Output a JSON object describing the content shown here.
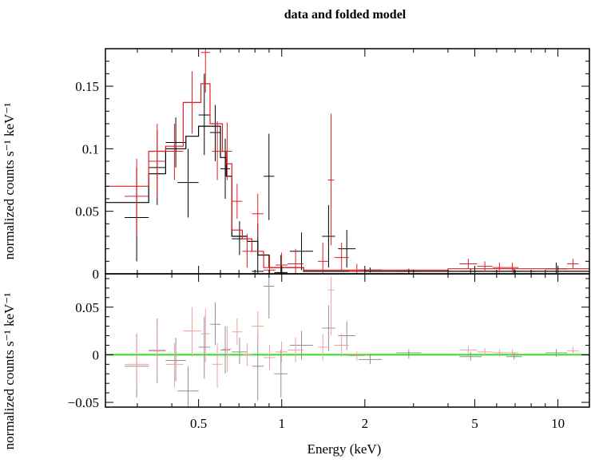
{
  "chart_data": [
    {
      "type": "scatter",
      "title": "data and folded model",
      "ylabel": "normalized counts s⁻¹ keV⁻¹",
      "xlabel": "",
      "xscale": "log",
      "xlim": [
        0.23,
        13
      ],
      "ylim": [
        0,
        0.18
      ],
      "xticks": [
        0.5,
        1,
        2,
        5,
        10
      ],
      "yticks": [
        0,
        0.05,
        0.1,
        0.15
      ],
      "ytick_labels": [
        "0",
        "0.05",
        "0.1",
        "0.15"
      ],
      "grid": false,
      "series": [
        {
          "color": "#000000",
          "data": [
            {
              "xlo": 0.27,
              "xhi": 0.33,
              "y": 0.045,
              "ylo": 0.01,
              "yhi": 0.085
            },
            {
              "xlo": 0.33,
              "xhi": 0.38,
              "y": 0.085,
              "ylo": 0.055,
              "yhi": 0.115
            },
            {
              "xlo": 0.38,
              "xhi": 0.45,
              "y": 0.105,
              "ylo": 0.085,
              "yhi": 0.125
            },
            {
              "xlo": 0.42,
              "xhi": 0.5,
              "y": 0.073,
              "ylo": 0.045,
              "yhi": 0.1
            },
            {
              "xlo": 0.5,
              "xhi": 0.55,
              "y": 0.127,
              "ylo": 0.095,
              "yhi": 0.16
            },
            {
              "xlo": 0.55,
              "xhi": 0.6,
              "y": 0.113,
              "ylo": 0.09,
              "yhi": 0.135
            },
            {
              "xlo": 0.6,
              "xhi": 0.65,
              "y": 0.084,
              "ylo": 0.06,
              "yhi": 0.108
            },
            {
              "xlo": 0.66,
              "xhi": 0.75,
              "y": 0.028,
              "ylo": 0.015,
              "yhi": 0.042
            },
            {
              "xlo": 0.78,
              "xhi": 0.86,
              "y": 0.002,
              "ylo": -0.005,
              "yhi": 0.04
            },
            {
              "xlo": 0.86,
              "xhi": 0.94,
              "y": 0.078,
              "ylo": 0.043,
              "yhi": 0.112
            },
            {
              "xlo": 0.94,
              "xhi": 1.05,
              "y": 0.001,
              "ylo": -0.006,
              "yhi": 0.015
            },
            {
              "xlo": 1.07,
              "xhi": 1.3,
              "y": 0.018,
              "ylo": 0.003,
              "yhi": 0.033
            },
            {
              "xlo": 1.4,
              "xhi": 1.56,
              "y": 0.03,
              "ylo": 0.005,
              "yhi": 0.055
            },
            {
              "xlo": 1.6,
              "xhi": 1.85,
              "y": 0.02,
              "ylo": 0.005,
              "yhi": 0.035
            },
            {
              "xlo": 1.9,
              "xhi": 2.3,
              "y": 0.003,
              "ylo": 0.001,
              "yhi": 0.005
            },
            {
              "xlo": 2.6,
              "xhi": 3.2,
              "y": 0.002,
              "ylo": 0.0,
              "yhi": 0.004
            },
            {
              "xlo": 4.4,
              "xhi": 5.3,
              "y": 0.002,
              "ylo": 0.0,
              "yhi": 0.004
            },
            {
              "xlo": 6.5,
              "xhi": 7.4,
              "y": 0.002,
              "ylo": 0.0,
              "yhi": 0.004
            },
            {
              "xlo": 9.0,
              "xhi": 10.8,
              "y": 0.004,
              "ylo": 0.0,
              "yhi": 0.009
            }
          ],
          "model_steps": [
            [
              0.23,
              0.057
            ],
            [
              0.33,
              0.08
            ],
            [
              0.38,
              0.1
            ],
            [
              0.45,
              0.11
            ],
            [
              0.5,
              0.118
            ],
            [
              0.6,
              0.093
            ],
            [
              0.63,
              0.078
            ],
            [
              0.66,
              0.03
            ],
            [
              0.75,
              0.026
            ],
            [
              0.82,
              0.015
            ],
            [
              0.9,
              0.005
            ],
            [
              1.2,
              0.002
            ],
            [
              13.0,
              0.002
            ]
          ]
        },
        {
          "color": "#e02020",
          "data": [
            {
              "xlo": 0.27,
              "xhi": 0.33,
              "y": 0.062,
              "ylo": 0.03,
              "yhi": 0.092
            },
            {
              "xlo": 0.33,
              "xhi": 0.38,
              "y": 0.09,
              "ylo": 0.06,
              "yhi": 0.12
            },
            {
              "xlo": 0.38,
              "xhi": 0.44,
              "y": 0.098,
              "ylo": 0.075,
              "yhi": 0.12
            },
            {
              "xlo": 0.44,
              "xhi": 0.51,
              "y": 0.137,
              "ylo": 0.112,
              "yhi": 0.162
            },
            {
              "xlo": 0.51,
              "xhi": 0.55,
              "y": 0.177,
              "ylo": 0.145,
              "yhi": 0.182
            },
            {
              "xlo": 0.56,
              "xhi": 0.61,
              "y": 0.098,
              "ylo": 0.075,
              "yhi": 0.122
            },
            {
              "xlo": 0.61,
              "xhi": 0.66,
              "y": 0.098,
              "ylo": 0.075,
              "yhi": 0.121
            },
            {
              "xlo": 0.66,
              "xhi": 0.72,
              "y": 0.058,
              "ylo": 0.044,
              "yhi": 0.072
            },
            {
              "xlo": 0.72,
              "xhi": 0.78,
              "y": 0.018,
              "ylo": 0.005,
              "yhi": 0.032
            },
            {
              "xlo": 0.78,
              "xhi": 0.86,
              "y": 0.048,
              "ylo": 0.03,
              "yhi": 0.064
            },
            {
              "xlo": 0.86,
              "xhi": 0.95,
              "y": 0.003,
              "ylo": 0.0,
              "yhi": 0.015
            },
            {
              "xlo": 0.95,
              "xhi": 1.05,
              "y": 0.007,
              "ylo": 0.0,
              "yhi": 0.017
            },
            {
              "xlo": 1.05,
              "xhi": 1.2,
              "y": 0.008,
              "ylo": 0.0,
              "yhi": 0.02
            },
            {
              "xlo": 1.35,
              "xhi": 1.47,
              "y": 0.01,
              "ylo": 0.0,
              "yhi": 0.025
            },
            {
              "xlo": 1.47,
              "xhi": 1.55,
              "y": 0.075,
              "ylo": 0.023,
              "yhi": 0.128
            },
            {
              "xlo": 1.55,
              "xhi": 1.75,
              "y": 0.013,
              "ylo": 0.003,
              "yhi": 0.025
            },
            {
              "xlo": 1.75,
              "xhi": 2.0,
              "y": 0.002,
              "ylo": 0.0,
              "yhi": 0.008
            },
            {
              "xlo": 4.4,
              "xhi": 5.1,
              "y": 0.008,
              "ylo": 0.004,
              "yhi": 0.012
            },
            {
              "xlo": 5.1,
              "xhi": 5.8,
              "y": 0.006,
              "ylo": 0.002,
              "yhi": 0.01
            },
            {
              "xlo": 5.8,
              "xhi": 6.5,
              "y": 0.005,
              "ylo": 0.001,
              "yhi": 0.009
            },
            {
              "xlo": 6.5,
              "xhi": 7.2,
              "y": 0.005,
              "ylo": 0.001,
              "yhi": 0.009
            },
            {
              "xlo": 10.8,
              "xhi": 11.9,
              "y": 0.008,
              "ylo": 0.004,
              "yhi": 0.012
            }
          ],
          "model_steps": [
            [
              0.23,
              0.07
            ],
            [
              0.33,
              0.098
            ],
            [
              0.38,
              0.102
            ],
            [
              0.44,
              0.137
            ],
            [
              0.51,
              0.152
            ],
            [
              0.55,
              0.12
            ],
            [
              0.61,
              0.098
            ],
            [
              0.63,
              0.088
            ],
            [
              0.66,
              0.035
            ],
            [
              0.72,
              0.028
            ],
            [
              0.78,
              0.018
            ],
            [
              0.86,
              0.005
            ],
            [
              1.0,
              0.005
            ],
            [
              1.2,
              0.003
            ],
            [
              2.0,
              0.003
            ],
            [
              4.0,
              0.004
            ],
            [
              8.0,
              0.004
            ],
            [
              13.0,
              0.004
            ]
          ]
        }
      ]
    },
    {
      "type": "scatter",
      "title": "",
      "xlabel": "Energy (keV)",
      "ylabel": "normalized counts s⁻¹ keV⁻¹",
      "xscale": "log",
      "xlim": [
        0.23,
        13
      ],
      "ylim": [
        -0.055,
        0.085
      ],
      "xticks": [
        0.5,
        1,
        2,
        5,
        10
      ],
      "xtick_labels": [
        "0.5",
        "1",
        "2",
        "5",
        "10"
      ],
      "yticks": [
        -0.05,
        0,
        0.05
      ],
      "ytick_labels": [
        "−0.05",
        "0",
        "0.05"
      ],
      "grid": false,
      "reference_line": {
        "y": 0,
        "color": "#33dd22"
      },
      "series": [
        {
          "color": "#909090",
          "data": [
            {
              "xlo": 0.27,
              "xhi": 0.33,
              "y": -0.012,
              "ylo": -0.045,
              "yhi": 0.022
            },
            {
              "xlo": 0.33,
              "xhi": 0.38,
              "y": 0.004,
              "ylo": -0.03,
              "yhi": 0.038
            },
            {
              "xlo": 0.38,
              "xhi": 0.45,
              "y": -0.006,
              "ylo": -0.028,
              "yhi": 0.018
            },
            {
              "xlo": 0.42,
              "xhi": 0.5,
              "y": -0.038,
              "ylo": -0.06,
              "yhi": -0.012
            },
            {
              "xlo": 0.5,
              "xhi": 0.55,
              "y": 0.008,
              "ylo": -0.025,
              "yhi": 0.04
            },
            {
              "xlo": 0.55,
              "xhi": 0.6,
              "y": 0.032,
              "ylo": 0.01,
              "yhi": 0.055
            },
            {
              "xlo": 0.6,
              "xhi": 0.65,
              "y": 0.005,
              "ylo": -0.02,
              "yhi": 0.03
            },
            {
              "xlo": 0.66,
              "xhi": 0.75,
              "y": 0.003,
              "ylo": -0.01,
              "yhi": 0.018
            },
            {
              "xlo": 0.78,
              "xhi": 0.86,
              "y": -0.012,
              "ylo": -0.048,
              "yhi": 0.022
            },
            {
              "xlo": 0.86,
              "xhi": 0.94,
              "y": 0.072,
              "ylo": 0.038,
              "yhi": 0.088
            },
            {
              "xlo": 0.94,
              "xhi": 1.05,
              "y": -0.02,
              "ylo": -0.045,
              "yhi": 0.005
            },
            {
              "xlo": 1.07,
              "xhi": 1.3,
              "y": 0.01,
              "ylo": -0.005,
              "yhi": 0.025
            },
            {
              "xlo": 1.4,
              "xhi": 1.56,
              "y": 0.028,
              "ylo": 0.004,
              "yhi": 0.052
            },
            {
              "xlo": 1.6,
              "xhi": 1.85,
              "y": 0.02,
              "ylo": 0.005,
              "yhi": 0.035
            },
            {
              "xlo": 1.9,
              "xhi": 2.3,
              "y": -0.005,
              "ylo": -0.01,
              "yhi": 0.001
            },
            {
              "xlo": 2.6,
              "xhi": 3.2,
              "y": 0.002,
              "ylo": -0.004,
              "yhi": 0.006
            },
            {
              "xlo": 4.4,
              "xhi": 5.3,
              "y": -0.002,
              "ylo": -0.006,
              "yhi": 0.003
            },
            {
              "xlo": 6.5,
              "xhi": 7.4,
              "y": -0.002,
              "ylo": -0.005,
              "yhi": 0.002
            },
            {
              "xlo": 9.0,
              "xhi": 10.8,
              "y": 0.002,
              "ylo": -0.002,
              "yhi": 0.006
            }
          ]
        },
        {
          "color": "#f0a0a0",
          "data": [
            {
              "xlo": 0.27,
              "xhi": 0.33,
              "y": -0.01,
              "ylo": -0.035,
              "yhi": 0.018
            },
            {
              "xlo": 0.33,
              "xhi": 0.38,
              "y": 0.005,
              "ylo": -0.022,
              "yhi": 0.032
            },
            {
              "xlo": 0.38,
              "xhi": 0.44,
              "y": -0.01,
              "ylo": -0.034,
              "yhi": 0.012
            },
            {
              "xlo": 0.44,
              "xhi": 0.51,
              "y": 0.025,
              "ylo": -0.002,
              "yhi": 0.05
            },
            {
              "xlo": 0.51,
              "xhi": 0.55,
              "y": 0.022,
              "ylo": -0.008,
              "yhi": 0.048
            },
            {
              "xlo": 0.56,
              "xhi": 0.61,
              "y": -0.01,
              "ylo": -0.035,
              "yhi": 0.012
            },
            {
              "xlo": 0.61,
              "xhi": 0.66,
              "y": 0.006,
              "ylo": -0.018,
              "yhi": 0.03
            },
            {
              "xlo": 0.66,
              "xhi": 0.72,
              "y": 0.024,
              "ylo": 0.01,
              "yhi": 0.038
            },
            {
              "xlo": 0.72,
              "xhi": 0.78,
              "y": 0.0,
              "ylo": -0.012,
              "yhi": 0.012
            },
            {
              "xlo": 0.78,
              "xhi": 0.86,
              "y": 0.03,
              "ylo": 0.012,
              "yhi": 0.046
            },
            {
              "xlo": 0.86,
              "xhi": 0.95,
              "y": -0.003,
              "ylo": -0.016,
              "yhi": 0.01
            },
            {
              "xlo": 0.95,
              "xhi": 1.05,
              "y": 0.003,
              "ylo": -0.008,
              "yhi": 0.014
            },
            {
              "xlo": 1.05,
              "xhi": 1.2,
              "y": 0.005,
              "ylo": -0.008,
              "yhi": 0.018
            },
            {
              "xlo": 1.35,
              "xhi": 1.47,
              "y": 0.008,
              "ylo": -0.006,
              "yhi": 0.022
            },
            {
              "xlo": 1.47,
              "xhi": 1.55,
              "y": 0.068,
              "ylo": 0.02,
              "yhi": 0.082
            },
            {
              "xlo": 1.55,
              "xhi": 1.75,
              "y": 0.01,
              "ylo": -0.002,
              "yhi": 0.022
            },
            {
              "xlo": 1.75,
              "xhi": 2.0,
              "y": -0.001,
              "ylo": -0.006,
              "yhi": 0.004
            },
            {
              "xlo": 4.4,
              "xhi": 5.1,
              "y": 0.005,
              "ylo": 0.001,
              "yhi": 0.009
            },
            {
              "xlo": 5.1,
              "xhi": 5.8,
              "y": 0.003,
              "ylo": -0.001,
              "yhi": 0.007
            },
            {
              "xlo": 5.8,
              "xhi": 6.5,
              "y": 0.002,
              "ylo": -0.002,
              "yhi": 0.006
            },
            {
              "xlo": 6.5,
              "xhi": 7.2,
              "y": 0.002,
              "ylo": -0.002,
              "yhi": 0.006
            },
            {
              "xlo": 10.8,
              "xhi": 11.9,
              "y": 0.004,
              "ylo": 0.0,
              "yhi": 0.008
            }
          ]
        }
      ]
    }
  ]
}
